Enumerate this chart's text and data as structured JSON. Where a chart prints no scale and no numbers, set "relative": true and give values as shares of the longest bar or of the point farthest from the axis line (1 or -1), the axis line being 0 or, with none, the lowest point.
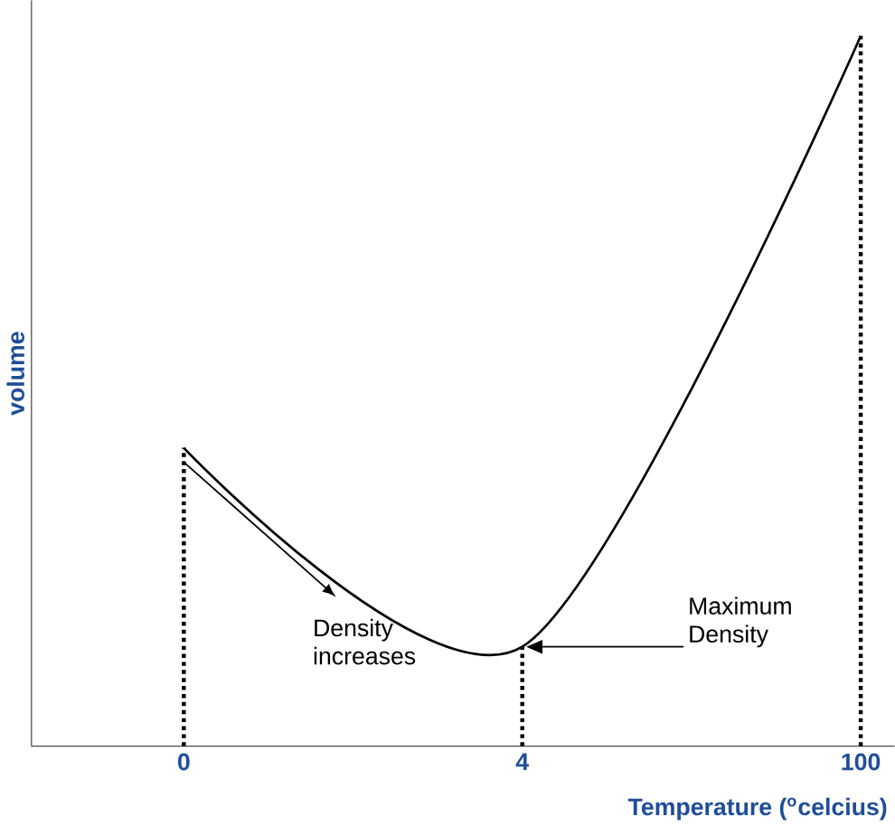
{
  "chart_data": {
    "type": "line",
    "relative": true,
    "xlabel": "Temperature ($^{o}$celcius)",
    "ylabel": "volume",
    "categories": [
      "0",
      "4",
      "100"
    ],
    "series": [
      {
        "color": "#000000",
        "values": [
          0.42,
          0.14,
          1
        ]
      }
    ],
    "ref_lines": [
      {
        "axis": "x",
        "value": "0",
        "line_style": "dotted"
      },
      {
        "axis": "x",
        "value": "4",
        "line_style": "dotted"
      },
      {
        "axis": "x",
        "value": "100",
        "line_style": "dotted"
      }
    ],
    "annotations": [
      "Density increases",
      "Maximum Density"
    ],
    "marker": "none",
    "line_style": "solid",
    "grid": false
  }
}
